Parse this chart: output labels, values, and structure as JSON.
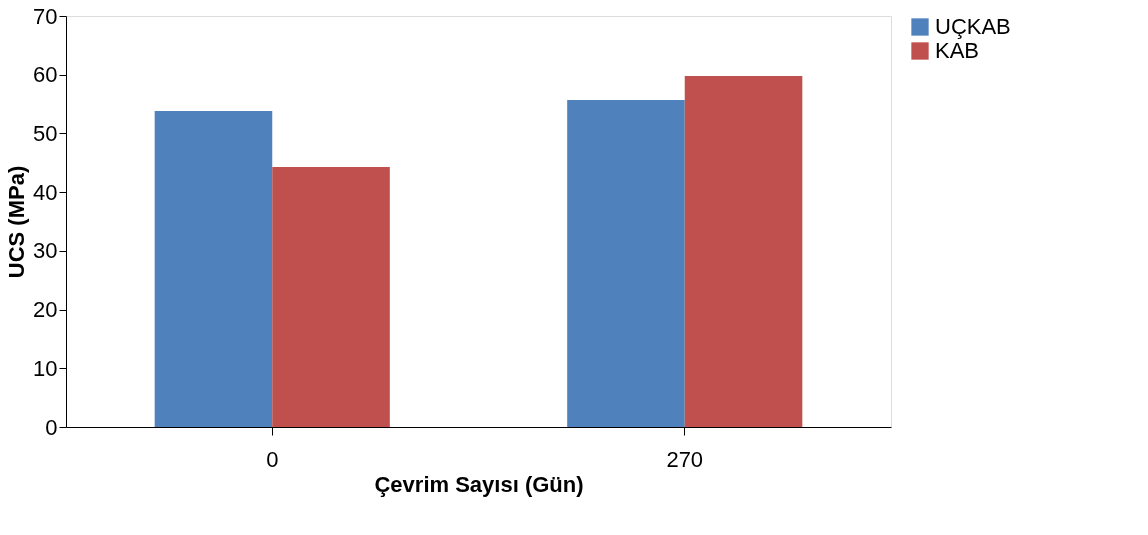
{
  "chart_data": {
    "type": "bar",
    "xlabel": "Çevrim Sayısı (Gün)",
    "ylabel": "UCS (MPa)",
    "categories": [
      "0",
      "270"
    ],
    "series": [
      {
        "name": "UÇKAB",
        "color": "#4f81bd",
        "values": [
          53.8,
          55.7
        ]
      },
      {
        "name": "KAB",
        "color": "#c0504d",
        "values": [
          44.3,
          59.8
        ]
      }
    ],
    "ylim": [
      0,
      70
    ],
    "yticks": [
      0,
      10,
      20,
      30,
      40,
      50,
      60,
      70
    ],
    "grid": false,
    "legend": "right"
  }
}
